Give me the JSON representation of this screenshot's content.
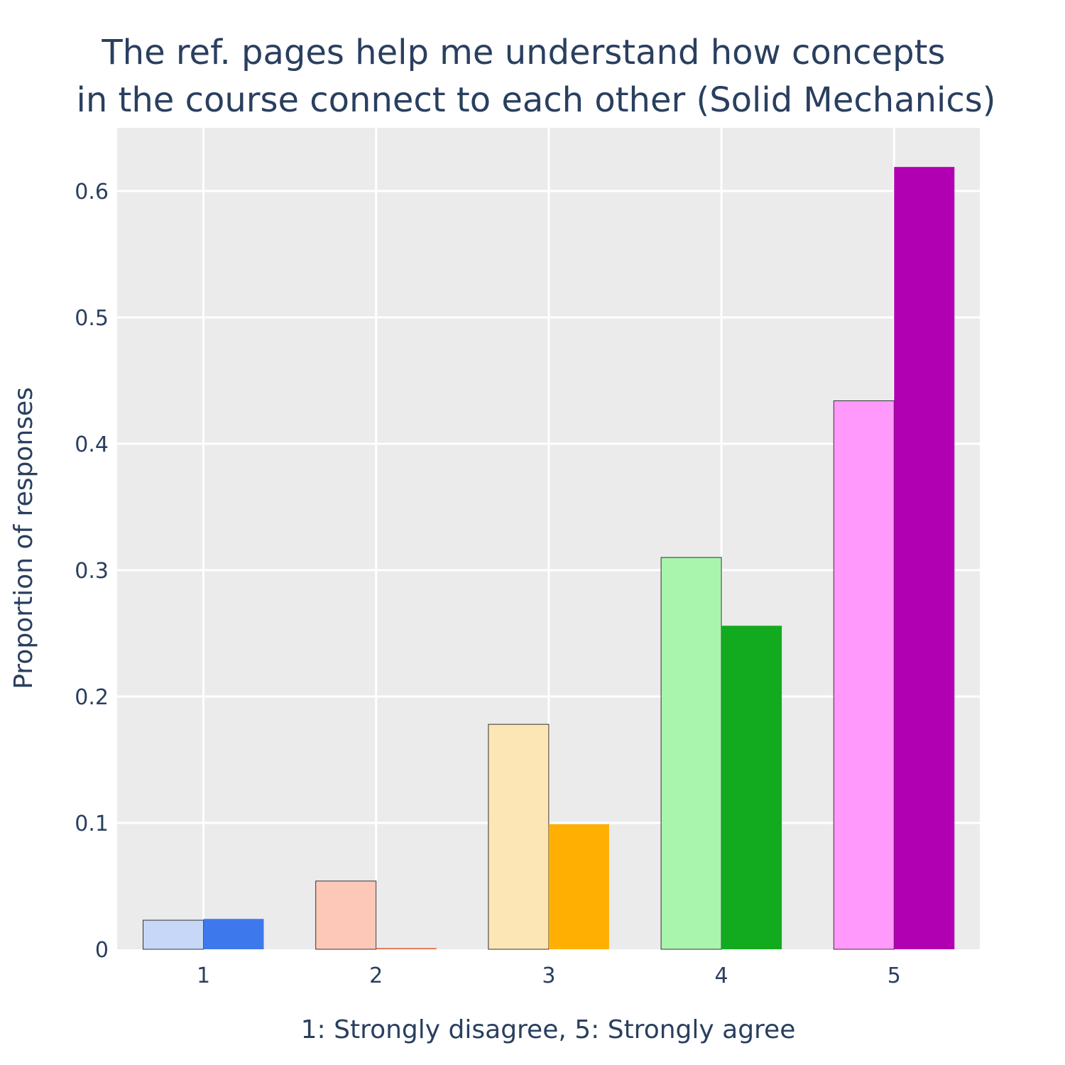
{
  "chart_data": {
    "type": "bar",
    "title_lines": [
      "The ref. pages help me understand how concepts",
      "in the course connect to each other (Solid Mechanics)"
    ],
    "xlabel": "1: Strongly disagree, 5: Strongly agree",
    "ylabel": "Proportion of responses",
    "categories": [
      "1",
      "2",
      "3",
      "4",
      "5"
    ],
    "ylim": [
      0,
      0.65
    ],
    "yticks": [
      0,
      0.1,
      0.2,
      0.3,
      0.4,
      0.5,
      0.6
    ],
    "ytick_labels": [
      "0",
      "0.1",
      "0.2",
      "0.3",
      "0.4",
      "0.5",
      "0.6"
    ],
    "grid": true,
    "legend": "none",
    "plot_background": "#ebebeb",
    "series": [
      {
        "values": [
          0.023,
          0.054,
          0.178,
          0.31,
          0.434
        ],
        "colors": [
          "#c6d7f8",
          "#fec8b8",
          "#fde6b5",
          "#aaf5ae",
          "#ff99fc"
        ],
        "outline": "#333333"
      },
      {
        "values": [
          0.024,
          0.001,
          0.099,
          0.256,
          0.619
        ],
        "colors": [
          "#3d78ec",
          "#e46e4a",
          "#feaf02",
          "#12ab1f",
          "#b100b1"
        ],
        "outline": "none"
      }
    ]
  }
}
